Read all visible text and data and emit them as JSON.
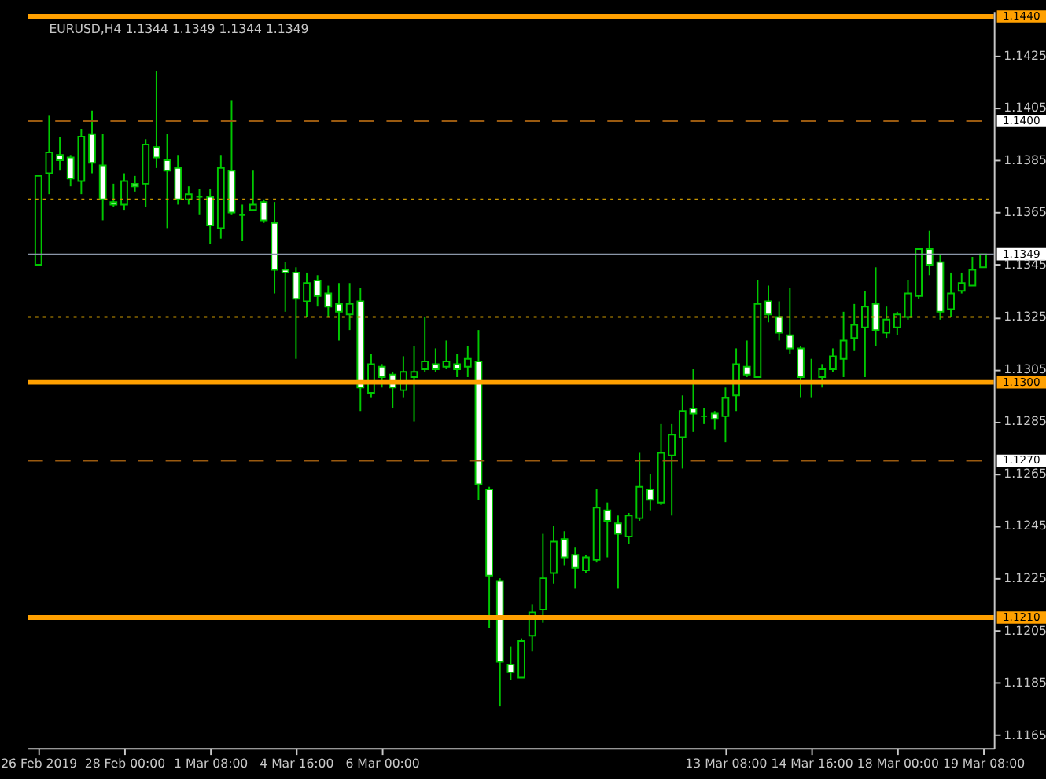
{
  "chart_data": {
    "type": "candlestick",
    "title": "EURUSD,H4  1.1344 1.1349 1.1344 1.1349",
    "categories": [
      "26 Feb 2019",
      null,
      null,
      null,
      null,
      null,
      null,
      null,
      "28 Feb 00:00",
      null,
      null,
      null,
      null,
      null,
      null,
      null,
      "1 Mar 08:00",
      null,
      null,
      null,
      null,
      null,
      null,
      null,
      "4 Mar 16:00",
      null,
      null,
      null,
      null,
      null,
      null,
      null,
      "6 Mar 00:00",
      null,
      null,
      null,
      null,
      null,
      null,
      null,
      null,
      null,
      null,
      null,
      null,
      null,
      null,
      null,
      null,
      null,
      null,
      null,
      null,
      null,
      null,
      null,
      null,
      null,
      null,
      null,
      null,
      null,
      null,
      null,
      "13 Mar 08:00",
      null,
      null,
      null,
      null,
      null,
      null,
      null,
      "14 Mar 16:00",
      null,
      null,
      null,
      null,
      null,
      null,
      null,
      "18 Mar 00:00",
      null,
      null,
      null,
      null,
      null,
      null,
      null,
      "19 Mar 08:00"
    ],
    "color": "#00c800",
    "ohlc": [
      [
        1.1345,
        1.1379,
        1.1345,
        1.1379
      ],
      [
        1.138,
        1.1402,
        1.1372,
        1.1388
      ],
      [
        1.1387,
        1.1394,
        1.1381,
        1.1385
      ],
      [
        1.1386,
        1.1387,
        1.1375,
        1.1378
      ],
      [
        1.1377,
        1.1397,
        1.1372,
        1.1394
      ],
      [
        1.1395,
        1.1404,
        1.138,
        1.1384
      ],
      [
        1.1383,
        1.1395,
        1.1362,
        1.137
      ],
      [
        1.1369,
        1.1376,
        1.1367,
        1.1368
      ],
      [
        1.1368,
        1.138,
        1.1366,
        1.1377
      ],
      [
        1.1376,
        1.1379,
        1.1373,
        1.1375
      ],
      [
        1.1376,
        1.1393,
        1.1367,
        1.1391
      ],
      [
        1.139,
        1.1419,
        1.1382,
        1.1386
      ],
      [
        1.1385,
        1.1395,
        1.1359,
        1.1381
      ],
      [
        1.1382,
        1.1387,
        1.1368,
        1.137
      ],
      [
        1.137,
        1.1375,
        1.1368,
        1.1372
      ],
      [
        1.1371,
        1.1374,
        1.1364,
        1.1371
      ],
      [
        1.1371,
        1.1374,
        1.1353,
        1.136
      ],
      [
        1.1359,
        1.1387,
        1.1355,
        1.1382
      ],
      [
        1.1381,
        1.1408,
        1.1364,
        1.1365
      ],
      [
        1.1364,
        1.1368,
        1.1354,
        1.1364
      ],
      [
        1.1366,
        1.1381,
        1.1366,
        1.1368
      ],
      [
        1.1369,
        1.137,
        1.1361,
        1.1362
      ],
      [
        1.1361,
        1.1369,
        1.1334,
        1.1343
      ],
      [
        1.1343,
        1.1346,
        1.1327,
        1.1342
      ],
      [
        1.1342,
        1.1344,
        1.1309,
        1.1332
      ],
      [
        1.1331,
        1.1342,
        1.1325,
        1.1338
      ],
      [
        1.1339,
        1.1341,
        1.1329,
        1.1333
      ],
      [
        1.1334,
        1.1337,
        1.1325,
        1.1329
      ],
      [
        1.133,
        1.1338,
        1.1316,
        1.1327
      ],
      [
        1.1326,
        1.1338,
        1.132,
        1.133
      ],
      [
        1.1331,
        1.1336,
        1.1289,
        1.1298
      ],
      [
        1.1296,
        1.1311,
        1.1294,
        1.1307
      ],
      [
        1.1306,
        1.1307,
        1.1298,
        1.1302
      ],
      [
        1.1303,
        1.1304,
        1.129,
        1.1298
      ],
      [
        1.1297,
        1.131,
        1.1294,
        1.1304
      ],
      [
        1.1302,
        1.1314,
        1.1285,
        1.1304
      ],
      [
        1.1305,
        1.1325,
        1.1304,
        1.1308
      ],
      [
        1.1307,
        1.1313,
        1.1304,
        1.1305
      ],
      [
        1.1306,
        1.1316,
        1.1305,
        1.1308
      ],
      [
        1.1307,
        1.1311,
        1.1302,
        1.1305
      ],
      [
        1.1306,
        1.1314,
        1.1302,
        1.1309
      ],
      [
        1.1308,
        1.132,
        1.1255,
        1.1261
      ],
      [
        1.1259,
        1.126,
        1.1206,
        1.1226
      ],
      [
        1.1224,
        1.1225,
        1.1176,
        1.1193
      ],
      [
        1.1192,
        1.1199,
        1.1186,
        1.1189
      ],
      [
        1.1187,
        1.1202,
        1.1187,
        1.1201
      ],
      [
        1.1203,
        1.1215,
        1.1197,
        1.1212
      ],
      [
        1.1213,
        1.1242,
        1.1208,
        1.1225
      ],
      [
        1.1227,
        1.1245,
        1.1223,
        1.1239
      ],
      [
        1.124,
        1.1243,
        1.123,
        1.1233
      ],
      [
        1.1234,
        1.1237,
        1.1221,
        1.1229
      ],
      [
        1.1228,
        1.1234,
        1.1227,
        1.1233
      ],
      [
        1.1232,
        1.1259,
        1.1231,
        1.1252
      ],
      [
        1.1251,
        1.1254,
        1.1233,
        1.1247
      ],
      [
        1.1246,
        1.1249,
        1.1221,
        1.1242
      ],
      [
        1.1241,
        1.125,
        1.1238,
        1.1249
      ],
      [
        1.1248,
        1.1273,
        1.1247,
        1.126
      ],
      [
        1.1259,
        1.1265,
        1.1251,
        1.1255
      ],
      [
        1.1254,
        1.1284,
        1.1253,
        1.1273
      ],
      [
        1.1272,
        1.1284,
        1.1249,
        1.128
      ],
      [
        1.1279,
        1.1295,
        1.1267,
        1.1289
      ],
      [
        1.129,
        1.1305,
        1.1281,
        1.1288
      ],
      [
        1.1287,
        1.129,
        1.1284,
        1.1287
      ],
      [
        1.1288,
        1.1289,
        1.1282,
        1.1286
      ],
      [
        1.1287,
        1.1298,
        1.1277,
        1.1294
      ],
      [
        1.1295,
        1.1313,
        1.1289,
        1.1307
      ],
      [
        1.1306,
        1.1316,
        1.1302,
        1.1303
      ],
      [
        1.1302,
        1.1339,
        1.1302,
        1.133
      ],
      [
        1.1331,
        1.1337,
        1.1323,
        1.1326
      ],
      [
        1.1325,
        1.1331,
        1.1316,
        1.1319
      ],
      [
        1.1318,
        1.1336,
        1.1311,
        1.1313
      ],
      [
        1.1313,
        1.1314,
        1.1294,
        1.1302
      ],
      [
        1.13,
        1.1309,
        1.1294,
        1.13
      ],
      [
        1.1302,
        1.1307,
        1.1298,
        1.1305
      ],
      [
        1.1305,
        1.1313,
        1.1304,
        1.131
      ],
      [
        1.1309,
        1.1327,
        1.1302,
        1.1316
      ],
      [
        1.1317,
        1.133,
        1.1312,
        1.1322
      ],
      [
        1.1321,
        1.1335,
        1.1302,
        1.1329
      ],
      [
        1.133,
        1.1344,
        1.1314,
        1.132
      ],
      [
        1.1319,
        1.1329,
        1.1317,
        1.1324
      ],
      [
        1.1321,
        1.1327,
        1.1318,
        1.1326
      ],
      [
        1.1325,
        1.1339,
        1.1324,
        1.1334
      ],
      [
        1.1333,
        1.1351,
        1.1332,
        1.1351
      ],
      [
        1.1351,
        1.1358,
        1.1341,
        1.1345
      ],
      [
        1.1346,
        1.1349,
        1.1324,
        1.1327
      ],
      [
        1.1328,
        1.1342,
        1.1325,
        1.1334
      ],
      [
        1.1335,
        1.1342,
        1.1334,
        1.1338
      ],
      [
        1.1337,
        1.1348,
        1.1337,
        1.1343
      ],
      [
        1.1344,
        1.1349,
        1.1344,
        1.1349
      ]
    ],
    "ylim": [
      1.116,
      1.1442
    ],
    "yticks": [
      1.1165,
      1.1185,
      1.1205,
      1.1225,
      1.1245,
      1.1265,
      1.1285,
      1.1305,
      1.1325,
      1.1345,
      1.1365,
      1.1385,
      1.1405,
      1.1425
    ],
    "ref_lines": [
      {
        "axis": "y",
        "value": 1.144,
        "label": "1.1440",
        "color": "#ffa000",
        "line_style": "solid"
      },
      {
        "axis": "y",
        "value": 1.14,
        "label": "1.1400",
        "color": "#9a5a10",
        "line_style": "dashed"
      },
      {
        "axis": "y",
        "value": 1.137,
        "label": null,
        "color": "#c89600",
        "line_style": "dotted"
      },
      {
        "axis": "y",
        "value": 1.1349,
        "label": "1.1349",
        "color": "#8a96a8",
        "line_style": "solid"
      },
      {
        "axis": "y",
        "value": 1.1325,
        "label": null,
        "color": "#c89600",
        "line_style": "dotted"
      },
      {
        "axis": "y",
        "value": 1.13,
        "label": "1.1300",
        "color": "#ffa000",
        "line_style": "solid"
      },
      {
        "axis": "y",
        "value": 1.127,
        "label": "1.1270",
        "color": "#9a5a10",
        "line_style": "dashed"
      },
      {
        "axis": "y",
        "value": 1.121,
        "label": "1.1210",
        "color": "#ffa000",
        "line_style": "solid"
      }
    ],
    "grid": false,
    "legend": false
  }
}
